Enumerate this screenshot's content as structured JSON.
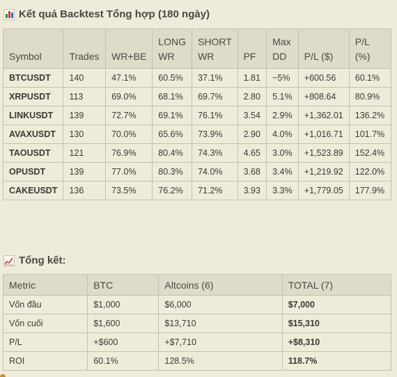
{
  "backtest": {
    "title": "Kết quả Backtest Tổng hợp (180 ngày)",
    "icon": "bar-chart-icon",
    "headers": [
      "Symbol",
      "Trades",
      "WR+BE",
      "LONG WR",
      "SHORT WR",
      "PF",
      "Max DD",
      "P/L ($)",
      "P/L (%)"
    ],
    "rows": [
      [
        "BTCUSDT",
        "140",
        "47.1%",
        "60.5%",
        "37.1%",
        "1.81",
        "~5%",
        "+600.56",
        "60.1%"
      ],
      [
        "XRPUSDT",
        "113",
        "69.0%",
        "68.1%",
        "69.7%",
        "2.80",
        "5.1%",
        "+808.64",
        "80.9%"
      ],
      [
        "LINKUSDT",
        "139",
        "72.7%",
        "69.1%",
        "76.1%",
        "3.54",
        "2.9%",
        "+1,362.01",
        "136.2%"
      ],
      [
        "AVAXUSDT",
        "130",
        "70.0%",
        "65.6%",
        "73.9%",
        "2.90",
        "4.0%",
        "+1,016.71",
        "101.7%"
      ],
      [
        "TAOUSDT",
        "121",
        "76.9%",
        "80.4%",
        "74.3%",
        "4.65",
        "3.0%",
        "+1,523.89",
        "152.4%"
      ],
      [
        "OPUSDT",
        "139",
        "77.0%",
        "80.3%",
        "74.0%",
        "3.68",
        "3.4%",
        "+1,219.92",
        "122.0%"
      ],
      [
        "CAKEUSDT",
        "136",
        "73.5%",
        "76.2%",
        "71.2%",
        "3.93",
        "3.3%",
        "+1,779.05",
        "177.9%"
      ]
    ]
  },
  "summary": {
    "title": "Tổng kết:",
    "icon": "trend-up-icon",
    "headers": [
      "Metric",
      "BTC",
      "Altcoins (6)",
      "TOTAL (7)"
    ],
    "rows": [
      [
        "Vốn đầu",
        "$1,000",
        "$6,000",
        "$7,000"
      ],
      [
        "Vốn cuối",
        "$1,600",
        "$13,710",
        "$15,310"
      ],
      [
        "P/L",
        "+$600",
        "+$7,710",
        "+$8,310"
      ],
      [
        "ROI",
        "60.1%",
        "128.5%",
        "118.7%"
      ]
    ]
  }
}
